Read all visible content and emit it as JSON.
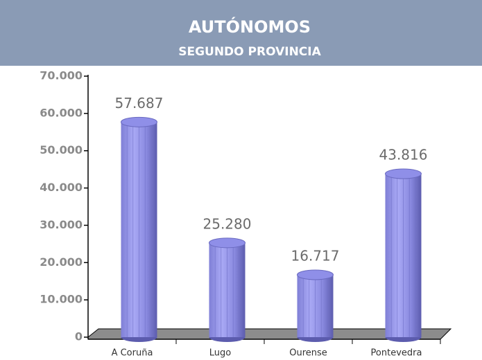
{
  "chart_data": {
    "type": "bar",
    "title": "AUTÓNOMOS",
    "subtitle": "SEGUNDO PROVINCIA",
    "categories": [
      "A Coruña",
      "Lugo",
      "Ourense",
      "Pontevedra"
    ],
    "values": [
      57687,
      25280,
      16717,
      43816
    ],
    "value_labels": [
      "57.687",
      "25.280",
      "16.717",
      "43.816"
    ],
    "color": "#8f8fe8",
    "ylim": [
      0,
      70000
    ],
    "yticks": [
      0,
      {
        "value": 10000,
        "label": "10.000"
      },
      {
        "value": 20000,
        "label": "20.000"
      },
      {
        "value": 30000,
        "label": "30.000"
      },
      {
        "value": 40000,
        "label": "40.000"
      },
      {
        "value": 50000,
        "label": "50.000"
      },
      {
        "value": 60000,
        "label": "60.000"
      },
      {
        "value": 70000,
        "label": "70.000"
      }
    ]
  }
}
